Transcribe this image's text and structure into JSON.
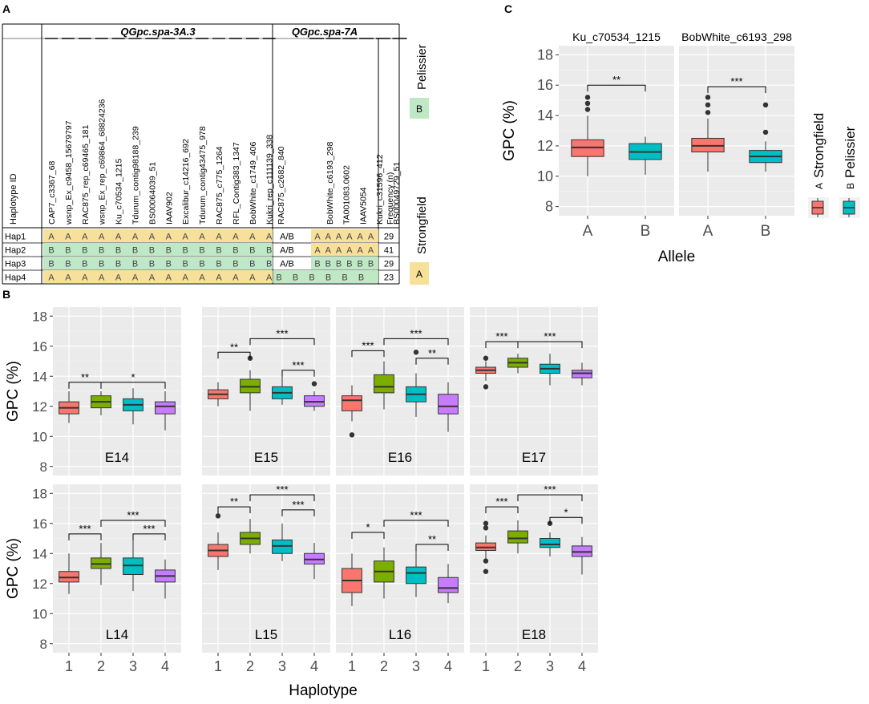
{
  "panel_a": {
    "label": "A",
    "header_id": "Haplotype ID",
    "group_1": "QGpc.spa-3A.3",
    "group_2": "QGpc.spa-7A",
    "markers_1": [
      "CAP7_c3367_68",
      "wsnp_Ex_c9458_15679797",
      "RAC875_rep_c69465_181",
      "wsnp_Ex_rep_c69864_68824236",
      "Ku_c70534_1215",
      "Tdurum_contig98188_239",
      "BS00064039_51",
      "IAAV902",
      "Excalibur_c14216_692",
      "Tdurum_contig43475_978",
      "RAC875_c775_1264",
      "RFL_Contig383_1347",
      "BobWhite_c1749_406",
      "Kukri_rep_c111139_338"
    ],
    "markers_2": [
      "RAC875_c2682_840",
      "BobWhite_c6193_298",
      "TA001083.0602",
      "IAAV5054",
      "Kukri_c31596_412",
      "BS00049729_51"
    ],
    "freq_header": "Frequency (n)",
    "rows": [
      {
        "id": "Hap1",
        "g1": "A",
        "mid": "A/B",
        "g2": "A",
        "freq": "29"
      },
      {
        "id": "Hap2",
        "g1": "B",
        "mid": "A/B",
        "g2": "A",
        "freq": "41"
      },
      {
        "id": "Hap3",
        "g1": "B",
        "mid": "A/B",
        "g2": "B",
        "freq": "29"
      },
      {
        "id": "Hap4",
        "g1": "A",
        "mid": "",
        "g2": "B",
        "freq": "23"
      }
    ],
    "legend": {
      "pelissier_letter": "B",
      "pelissier_name": "Pelissier",
      "strongfield_letter": "A",
      "strongfield_name": "Strongfield",
      "a_color": "#f7e09a",
      "b_color": "#bfe8c5"
    }
  },
  "chart_data": [
    {
      "panel": "C",
      "type": "boxplot",
      "title": "",
      "xlabel": "Allele",
      "ylabel": "GPC (%)",
      "ylim": [
        7.4,
        18.6
      ],
      "yticks": [
        8,
        10,
        12,
        14,
        16,
        18
      ],
      "categories": [
        "A",
        "B"
      ],
      "facets": [
        {
          "title": "Ku_c70534_1215",
          "boxes": [
            {
              "category": "A",
              "color": "#f8766d",
              "q1": 11.3,
              "median": 11.9,
              "q3": 12.4,
              "low": 10.0,
              "high": 14.0,
              "outliers": [
                14.4,
                14.8,
                15.2
              ]
            },
            {
              "category": "B",
              "color": "#00bfc4",
              "q1": 11.1,
              "median": 11.6,
              "q3": 12.15,
              "low": 10.1,
              "high": 12.6,
              "outliers": []
            }
          ],
          "sig": [
            {
              "from": 1,
              "to": 2,
              "label": "**",
              "y": 16.0
            }
          ]
        },
        {
          "title": "BobWhite_c6193_298",
          "boxes": [
            {
              "category": "A",
              "color": "#f8766d",
              "q1": 11.6,
              "median": 12.0,
              "q3": 12.5,
              "low": 10.3,
              "high": 13.8,
              "outliers": [
                14.2,
                14.7,
                15.2
              ]
            },
            {
              "category": "B",
              "color": "#00bfc4",
              "q1": 10.9,
              "median": 11.3,
              "q3": 11.7,
              "low": 10.3,
              "high": 12.3,
              "outliers": [
                12.9,
                14.7
              ]
            }
          ],
          "sig": [
            {
              "from": 1,
              "to": 2,
              "label": "***",
              "y": 15.9
            }
          ]
        }
      ],
      "legend": [
        {
          "key": "A",
          "label": "Strongfield",
          "color": "#f8766d"
        },
        {
          "key": "B",
          "label": "Pelissier",
          "color": "#00bfc4"
        }
      ]
    },
    {
      "panel": "B",
      "type": "boxplot",
      "title": "",
      "xlabel": "Haplotype",
      "ylabel": "GPC (%)",
      "ylim": [
        7.4,
        18.6
      ],
      "yticks": [
        8,
        10,
        12,
        14,
        16,
        18
      ],
      "categories": [
        "1",
        "2",
        "3",
        "4"
      ],
      "colors": [
        "#f8766d",
        "#7cae00",
        "#00bfc4",
        "#c77cff"
      ],
      "facets": [
        {
          "title": "E14",
          "boxes": [
            {
              "q1": 11.5,
              "median": 11.9,
              "q3": 12.3,
              "low": 10.9,
              "high": 13.0,
              "outliers": []
            },
            {
              "q1": 11.9,
              "median": 12.3,
              "q3": 12.7,
              "low": 11.4,
              "high": 13.0,
              "outliers": []
            },
            {
              "q1": 11.7,
              "median": 12.1,
              "q3": 12.5,
              "low": 10.8,
              "high": 13.2,
              "outliers": []
            },
            {
              "q1": 11.5,
              "median": 12.0,
              "q3": 12.3,
              "low": 10.4,
              "high": 13.0,
              "outliers": []
            }
          ],
          "sig": [
            {
              "from": 1,
              "to": 2,
              "label": "**",
              "y": 13.6
            },
            {
              "from": 2,
              "to": 4,
              "label": "*",
              "y": 13.6
            }
          ]
        },
        {
          "title": "E15",
          "boxes": [
            {
              "q1": 12.5,
              "median": 12.8,
              "q3": 13.1,
              "low": 12.0,
              "high": 13.6,
              "outliers": []
            },
            {
              "q1": 12.9,
              "median": 13.3,
              "q3": 13.8,
              "low": 11.7,
              "high": 14.4,
              "outliers": [
                15.2
              ]
            },
            {
              "q1": 12.5,
              "median": 12.9,
              "q3": 13.3,
              "low": 12.1,
              "high": 14.1,
              "outliers": []
            },
            {
              "q1": 12.0,
              "median": 12.3,
              "q3": 12.7,
              "low": 11.7,
              "high": 13.0,
              "outliers": [
                13.5
              ]
            }
          ],
          "sig": [
            {
              "from": 1,
              "to": 2,
              "label": "**",
              "y": 15.6
            },
            {
              "from": 2,
              "to": 4,
              "label": "***",
              "y": 16.5
            },
            {
              "from": 3,
              "to": 4,
              "label": "***",
              "y": 14.4
            }
          ]
        },
        {
          "title": "E16",
          "boxes": [
            {
              "q1": 11.7,
              "median": 12.4,
              "q3": 12.7,
              "low": 11.0,
              "high": 13.4,
              "outliers": [
                10.1
              ]
            },
            {
              "q1": 12.9,
              "median": 13.3,
              "q3": 14.1,
              "low": 11.8,
              "high": 15.0,
              "outliers": []
            },
            {
              "q1": 12.3,
              "median": 12.8,
              "q3": 13.3,
              "low": 11.3,
              "high": 14.2,
              "outliers": [
                15.6
              ]
            },
            {
              "q1": 11.5,
              "median": 12.0,
              "q3": 12.8,
              "low": 10.3,
              "high": 13.6,
              "outliers": []
            }
          ],
          "sig": [
            {
              "from": 1,
              "to": 2,
              "label": "***",
              "y": 15.7
            },
            {
              "from": 2,
              "to": 4,
              "label": "***",
              "y": 16.5
            },
            {
              "from": 3,
              "to": 4,
              "label": "**",
              "y": 15.2
            }
          ]
        },
        {
          "title": "E17",
          "boxes": [
            {
              "q1": 14.2,
              "median": 14.4,
              "q3": 14.6,
              "low": 13.7,
              "high": 15.0,
              "outliers": [
                13.3,
                15.2
              ]
            },
            {
              "q1": 14.6,
              "median": 14.9,
              "q3": 15.2,
              "low": 14.2,
              "high": 15.5,
              "outliers": []
            },
            {
              "q1": 14.2,
              "median": 14.5,
              "q3": 14.8,
              "low": 13.4,
              "high": 15.5,
              "outliers": []
            },
            {
              "q1": 13.9,
              "median": 14.2,
              "q3": 14.4,
              "low": 13.4,
              "high": 14.9,
              "outliers": []
            }
          ],
          "sig": [
            {
              "from": 1,
              "to": 2,
              "label": "***",
              "y": 16.3
            },
            {
              "from": 2,
              "to": 4,
              "label": "***",
              "y": 16.3
            }
          ]
        },
        {
          "title": "L14",
          "boxes": [
            {
              "q1": 12.1,
              "median": 12.4,
              "q3": 12.8,
              "low": 11.3,
              "high": 14.0,
              "outliers": []
            },
            {
              "q1": 13.0,
              "median": 13.3,
              "q3": 13.7,
              "low": 11.9,
              "high": 14.7,
              "outliers": []
            },
            {
              "q1": 12.6,
              "median": 13.2,
              "q3": 13.7,
              "low": 11.5,
              "high": 15.2,
              "outliers": []
            },
            {
              "q1": 12.1,
              "median": 12.5,
              "q3": 12.9,
              "low": 11.0,
              "high": 13.6,
              "outliers": []
            }
          ],
          "sig": [
            {
              "from": 1,
              "to": 2,
              "label": "***",
              "y": 15.3
            },
            {
              "from": 2,
              "to": 4,
              "label": "***",
              "y": 16.2
            },
            {
              "from": 3,
              "to": 4,
              "label": "***",
              "y": 15.3
            }
          ]
        },
        {
          "title": "L15",
          "boxes": [
            {
              "q1": 13.8,
              "median": 14.2,
              "q3": 14.6,
              "low": 12.9,
              "high": 15.4,
              "outliers": [
                16.5
              ]
            },
            {
              "q1": 14.6,
              "median": 15.0,
              "q3": 15.4,
              "low": 14.0,
              "high": 16.3,
              "outliers": []
            },
            {
              "q1": 14.0,
              "median": 14.5,
              "q3": 14.9,
              "low": 13.5,
              "high": 16.0,
              "outliers": []
            },
            {
              "q1": 13.3,
              "median": 13.6,
              "q3": 14.0,
              "low": 12.3,
              "high": 14.7,
              "outliers": []
            }
          ],
          "sig": [
            {
              "from": 1,
              "to": 2,
              "label": "**",
              "y": 17.1
            },
            {
              "from": 2,
              "to": 4,
              "label": "***",
              "y": 17.9
            },
            {
              "from": 3,
              "to": 4,
              "label": "***",
              "y": 16.9
            }
          ]
        },
        {
          "title": "L16",
          "boxes": [
            {
              "q1": 11.4,
              "median": 12.2,
              "q3": 13.0,
              "low": 10.5,
              "high": 14.0,
              "outliers": []
            },
            {
              "q1": 12.1,
              "median": 12.8,
              "q3": 13.5,
              "low": 11.0,
              "high": 14.4,
              "outliers": []
            },
            {
              "q1": 12.0,
              "median": 12.7,
              "q3": 13.1,
              "low": 11.1,
              "high": 14.4,
              "outliers": []
            },
            {
              "q1": 11.4,
              "median": 11.7,
              "q3": 12.4,
              "low": 10.7,
              "high": 13.3,
              "outliers": []
            }
          ],
          "sig": [
            {
              "from": 1,
              "to": 2,
              "label": "*",
              "y": 15.4
            },
            {
              "from": 2,
              "to": 4,
              "label": "***",
              "y": 16.2
            },
            {
              "from": 3,
              "to": 4,
              "label": "**",
              "y": 14.6
            }
          ]
        },
        {
          "title": "E18",
          "boxes": [
            {
              "q1": 14.2,
              "median": 14.4,
              "q3": 14.7,
              "low": 13.5,
              "high": 15.2,
              "outliers": [
                12.8,
                13.5,
                15.7,
                16.0
              ]
            },
            {
              "q1": 14.7,
              "median": 15.0,
              "q3": 15.5,
              "low": 14.0,
              "high": 16.2,
              "outliers": []
            },
            {
              "q1": 14.4,
              "median": 14.6,
              "q3": 15.0,
              "low": 13.8,
              "high": 15.4,
              "outliers": [
                16.0
              ]
            },
            {
              "q1": 13.8,
              "median": 14.1,
              "q3": 14.5,
              "low": 12.6,
              "high": 15.1,
              "outliers": []
            }
          ],
          "sig": [
            {
              "from": 1,
              "to": 2,
              "label": "***",
              "y": 17.1
            },
            {
              "from": 2,
              "to": 4,
              "label": "***",
              "y": 17.9
            },
            {
              "from": 3,
              "to": 4,
              "label": "*",
              "y": 16.4
            }
          ]
        }
      ]
    }
  ],
  "labels": {
    "panel_b": "B",
    "panel_c": "C"
  }
}
